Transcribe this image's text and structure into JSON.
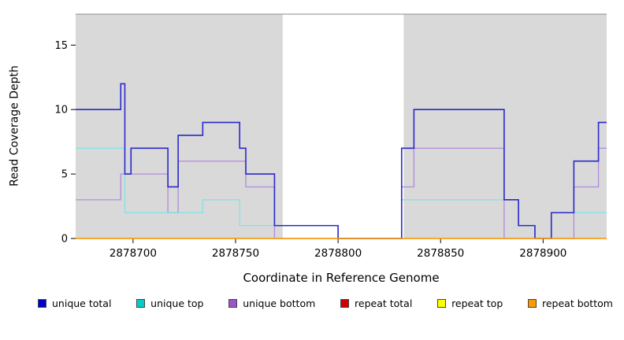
{
  "chart_data": {
    "type": "line",
    "subtype": "step",
    "title": "",
    "xlabel": "Coordinate in Reference Genome",
    "ylabel": "Read Coverage Depth",
    "xlim": [
      2878672,
      2878931
    ],
    "ylim": [
      0,
      17.4
    ],
    "x_ticks": [
      2878700,
      2878750,
      2878800,
      2878850,
      2878900
    ],
    "y_ticks": [
      0,
      5,
      10,
      15
    ],
    "grid": false,
    "legend_position": "bottom",
    "plot_background": "#d9d9d9",
    "unshaded_region": [
      2878773,
      2878832
    ],
    "series": [
      {
        "name": "unique bottom",
        "color": "#b08cd9",
        "points": [
          [
            2878672,
            3
          ],
          [
            2878694,
            5
          ],
          [
            2878717,
            2
          ],
          [
            2878722,
            6
          ],
          [
            2878755,
            4
          ],
          [
            2878769,
            0
          ],
          [
            2878831,
            4
          ],
          [
            2878837,
            7
          ],
          [
            2878881,
            0
          ],
          [
            2878915,
            4
          ],
          [
            2878927,
            7
          ],
          [
            2878931,
            7
          ]
        ]
      },
      {
        "name": "unique top",
        "color": "#7fe3e3",
        "points": [
          [
            2878672,
            7
          ],
          [
            2878696,
            2
          ],
          [
            2878734,
            3
          ],
          [
            2878752,
            1
          ],
          [
            2878800,
            0
          ],
          [
            2878831,
            3
          ],
          [
            2878888,
            1
          ],
          [
            2878896,
            0
          ],
          [
            2878904,
            2
          ],
          [
            2878931,
            2
          ]
        ]
      },
      {
        "name": "unique total",
        "color": "#2929cc",
        "points": [
          [
            2878672,
            10
          ],
          [
            2878694,
            12
          ],
          [
            2878696,
            5
          ],
          [
            2878699,
            7
          ],
          [
            2878717,
            4
          ],
          [
            2878722,
            8
          ],
          [
            2878734,
            9
          ],
          [
            2878752,
            7
          ],
          [
            2878755,
            5
          ],
          [
            2878769,
            1
          ],
          [
            2878800,
            0
          ],
          [
            2878831,
            7
          ],
          [
            2878837,
            10
          ],
          [
            2878881,
            3
          ],
          [
            2878888,
            1
          ],
          [
            2878896,
            0
          ],
          [
            2878904,
            2
          ],
          [
            2878915,
            6
          ],
          [
            2878927,
            9
          ],
          [
            2878931,
            9
          ]
        ]
      },
      {
        "name": "repeat total",
        "color": "#cc0000",
        "points": [
          [
            2878672,
            0
          ],
          [
            2878931,
            0
          ]
        ]
      },
      {
        "name": "repeat top",
        "color": "#ffff00",
        "points": [
          [
            2878672,
            0
          ],
          [
            2878931,
            0
          ]
        ]
      },
      {
        "name": "repeat bottom",
        "color": "#ff9900",
        "points": [
          [
            2878672,
            0
          ],
          [
            2878931,
            0
          ]
        ]
      }
    ]
  },
  "legend": {
    "items": [
      {
        "label": "unique total",
        "color": "#0000cc"
      },
      {
        "label": "unique top",
        "color": "#00cccc"
      },
      {
        "label": "unique bottom",
        "color": "#9955cc"
      },
      {
        "label": "repeat total",
        "color": "#cc0000"
      },
      {
        "label": "repeat top",
        "color": "#ffff00"
      },
      {
        "label": "repeat bottom",
        "color": "#ff9900"
      }
    ]
  }
}
